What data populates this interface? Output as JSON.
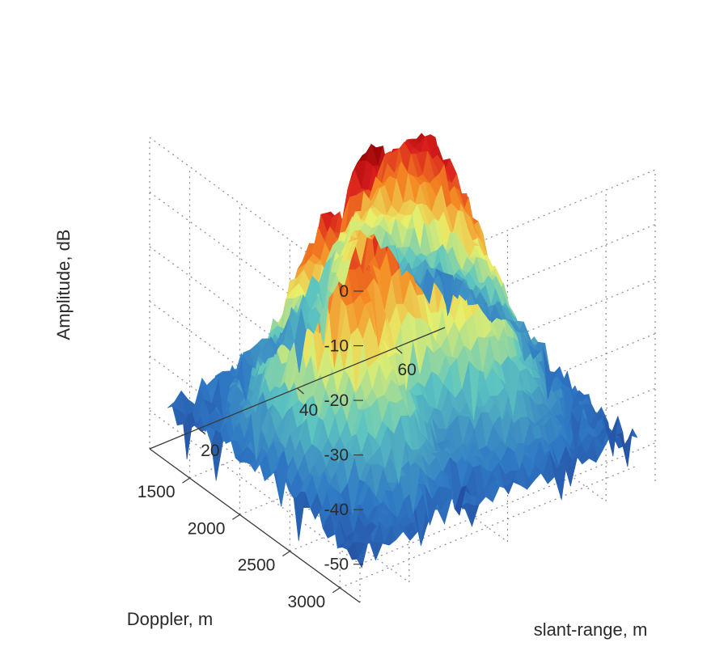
{
  "chart_data": {
    "type": "surface",
    "title": "",
    "zlabel": "Amplitude, dB",
    "xlabel": "slant-range, m",
    "ylabel": "Doppler, m",
    "z_ticks": [
      0,
      -10,
      -20,
      -30,
      -40,
      -50
    ],
    "z_tick_labels": [
      "0",
      "-10",
      "-20",
      "-30",
      "-40",
      "-50"
    ],
    "x_ticks": [
      20,
      40,
      60
    ],
    "x_tick_labels": [
      "20",
      "40",
      "60"
    ],
    "y_ticks": [
      1500,
      2000,
      2500,
      3000
    ],
    "y_tick_labels": [
      "1500",
      "2000",
      "2500",
      "3000"
    ],
    "xlim": [
      10,
      70
    ],
    "ylim": [
      1100,
      3200
    ],
    "zlim": [
      -57,
      0
    ],
    "grid": true,
    "colormap": [
      "#1a237e",
      "#2f78c4",
      "#5ec6c0",
      "#e8f06b",
      "#f58a22",
      "#d81d1d",
      "#8b0000"
    ],
    "surface_peak": {
      "x": 38,
      "y": 2000,
      "z": -3
    },
    "surface_ridges": [
      {
        "x": 28,
        "y": 2100,
        "z": -10
      },
      {
        "x": 50,
        "y": 1900,
        "z": -12
      }
    ],
    "surface_floor": -50
  }
}
